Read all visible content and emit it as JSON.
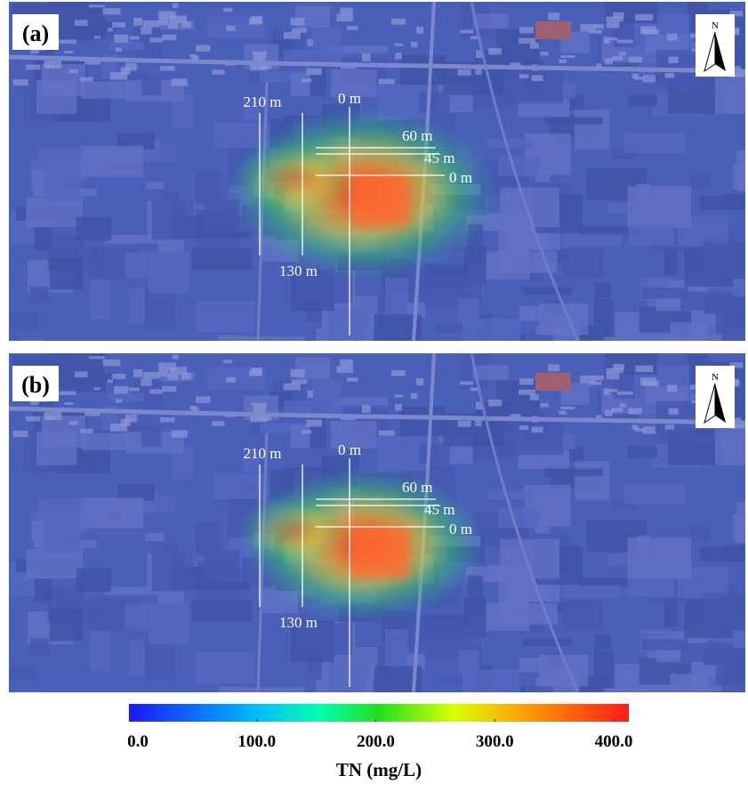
{
  "panels": [
    {
      "label": "(a)",
      "north": "N",
      "annotations": {
        "west_far": "210 m",
        "west_near": "130 m",
        "north_zero": "0 m",
        "line_60": "60 m",
        "line_45": "45 m",
        "line_0": "0 m"
      }
    },
    {
      "label": "(b)",
      "north": "N",
      "annotations": {
        "west_far": "210 m",
        "west_near": "130 m",
        "north_zero": "0 m",
        "line_60": "60 m",
        "line_45": "45 m",
        "line_0": "0 m"
      }
    }
  ],
  "colorbar": {
    "title": "TN (mg/L)",
    "lim": [
      0,
      400
    ],
    "ticks": [
      {
        "value": 0,
        "label": "0.0"
      },
      {
        "value": 100,
        "label": "100.0"
      },
      {
        "value": 200,
        "label": "200.0"
      },
      {
        "value": 300,
        "label": "300.0"
      },
      {
        "value": 400,
        "label": "400.0"
      }
    ]
  }
}
